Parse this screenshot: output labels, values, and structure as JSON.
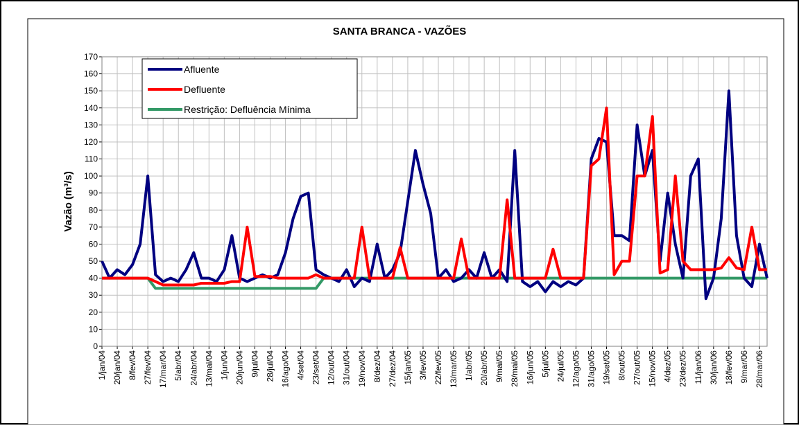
{
  "chart_data": {
    "type": "line",
    "title": "SANTA BRANCA - VAZÕES",
    "y_label": "Vazão (m³/s)",
    "categories": [
      "1/jan/04",
      null,
      "20/jan/04",
      null,
      "8/fev/04",
      null,
      "27/fev/04",
      null,
      "17/mar/04",
      null,
      "5/abr/04",
      null,
      "24/abr/04",
      null,
      "13/mai/04",
      null,
      "1/jun/04",
      null,
      "20/jun/04",
      null,
      "9/jul/04",
      null,
      "28/jul/04",
      null,
      "16/ago/04",
      null,
      "4/set/04",
      null,
      "23/set/04",
      null,
      "12/out/04",
      null,
      "31/out/04",
      null,
      "19/nov/04",
      null,
      "8/dez/04",
      null,
      "27/dez/04",
      null,
      "15/jan/05",
      null,
      "3/fev/05",
      null,
      "22/fev/05",
      null,
      "13/mar/05",
      null,
      "1/abr/05",
      null,
      "20/abr/05",
      null,
      "9/mai/05",
      null,
      "28/mai/05",
      null,
      "16/jun/05",
      null,
      "5/jul/05",
      null,
      "24/jul/05",
      null,
      "12/ago/05",
      null,
      "31/ago/05",
      null,
      "19/set/05",
      null,
      "8/out/05",
      null,
      "27/out/05",
      null,
      "15/nov/05",
      null,
      "4/dez/05",
      null,
      "23/dez/05",
      null,
      "11/jan/06",
      null,
      "30/jan/06",
      null,
      "18/fev/06",
      null,
      "9/mar/06",
      null,
      "28/mar/06",
      null
    ],
    "series": [
      {
        "name": "Afluente",
        "color": "#000080",
        "values": [
          50,
          40,
          45,
          42,
          48,
          60,
          100,
          42,
          38,
          40,
          38,
          45,
          55,
          40,
          40,
          38,
          45,
          65,
          40,
          38,
          40,
          42,
          40,
          42,
          55,
          75,
          88,
          90,
          45,
          42,
          40,
          38,
          45,
          35,
          40,
          38,
          60,
          40,
          45,
          55,
          85,
          115,
          95,
          78,
          40,
          45,
          38,
          40,
          45,
          40,
          55,
          40,
          45,
          38,
          115,
          38,
          35,
          38,
          32,
          38,
          35,
          38,
          36,
          40,
          110,
          122,
          120,
          65,
          65,
          62,
          130,
          100,
          115,
          50,
          90,
          60,
          40,
          100,
          110,
          28,
          40,
          75,
          150,
          65,
          40,
          35,
          60,
          40
        ]
      },
      {
        "name": "Defluente",
        "color": "#ff0000",
        "values": [
          40,
          40,
          40,
          40,
          40,
          40,
          40,
          38,
          36,
          36,
          36,
          36,
          36,
          37,
          37,
          37,
          37,
          38,
          38,
          70,
          41,
          41,
          41,
          40,
          40,
          40,
          40,
          40,
          42,
          40,
          40,
          40,
          40,
          40,
          70,
          40,
          40,
          40,
          40,
          58,
          40,
          40,
          40,
          40,
          40,
          40,
          40,
          63,
          40,
          40,
          40,
          40,
          40,
          86,
          40,
          40,
          40,
          40,
          40,
          57,
          40,
          40,
          40,
          40,
          106,
          110,
          140,
          42,
          50,
          50,
          100,
          100,
          135,
          43,
          45,
          100,
          50,
          45,
          45,
          45,
          45,
          46,
          52,
          46,
          45,
          70,
          45,
          45
        ]
      },
      {
        "name": "Restrição: Defluência Mínima",
        "color": "#339966",
        "values": [
          40,
          40,
          40,
          40,
          40,
          40,
          40,
          34,
          34,
          34,
          34,
          34,
          34,
          34,
          34,
          34,
          34,
          34,
          34,
          34,
          34,
          34,
          34,
          34,
          34,
          34,
          34,
          34,
          34,
          40,
          40,
          40,
          40,
          40,
          40,
          40,
          40,
          40,
          40,
          40,
          40,
          40,
          40,
          40,
          40,
          40,
          40,
          40,
          40,
          40,
          40,
          40,
          40,
          40,
          40,
          40,
          40,
          40,
          40,
          40,
          40,
          40,
          40,
          40,
          40,
          40,
          40,
          40,
          40,
          40,
          40,
          40,
          40,
          40,
          40,
          40,
          40,
          40,
          40,
          40,
          40,
          40,
          40,
          40,
          40,
          40,
          40,
          40
        ]
      }
    ],
    "ylim": [
      0,
      170
    ],
    "yticks": [
      0,
      10,
      20,
      30,
      40,
      50,
      60,
      70,
      80,
      90,
      100,
      110,
      120,
      130,
      140,
      150,
      160,
      170
    ],
    "grid": true
  }
}
